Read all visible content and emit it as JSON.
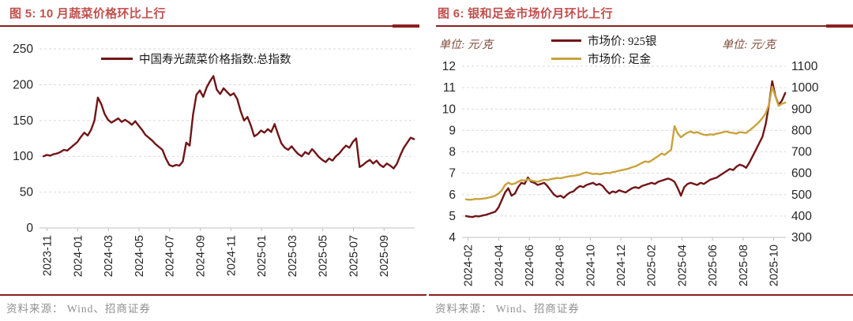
{
  "colors": {
    "title": "#c0504d",
    "rule": "#8b1f1f",
    "dark_line": "#701517",
    "gold_line": "#c9a23c",
    "grid": "#d9d9d9",
    "axis": "#bfbfbf",
    "tick_label": "#262626",
    "unit_text": "#7d4a38",
    "footer_text": "#909090",
    "legend_text": "#1a1a1a"
  },
  "panels": [
    {
      "title": "图 5: 10 月蔬菜价格环比上行",
      "footer": "资料来源： Wind、招商证券"
    },
    {
      "title": "图 6: 银和足金市场价月环比上行",
      "footer": "资料来源： Wind、招商证券",
      "unit_left": "单位: 元/克",
      "unit_right": "单位: 元/克"
    }
  ],
  "chart_data": [
    {
      "type": "line",
      "title": "10 月蔬菜价格环比上行",
      "legend": [
        {
          "label": "中国寿光蔬菜价格指数:总指数",
          "color": "#701517"
        }
      ],
      "y_axis": {
        "min": 0,
        "max": 250,
        "step": 50
      },
      "x_ticks": {
        "labels": [
          "2023-11",
          "2024-01",
          "2024-03",
          "2024-05",
          "2024-07",
          "2024-09",
          "2024-11",
          "2025-01",
          "2025-03",
          "2025-05",
          "2025-07",
          "2025-09"
        ],
        "months": [
          0,
          2,
          4,
          6,
          8,
          10,
          12,
          14,
          16,
          18,
          20,
          22
        ]
      },
      "total_months": 24.5,
      "data_months": 24.2,
      "tick_offset": 0.5,
      "grid": true,
      "legend_position": "top-center",
      "series": [
        {
          "name": "中国寿光蔬菜价格指数:总指数",
          "axis": "left",
          "color": "#701517",
          "values": [
            100,
            102,
            101,
            103,
            104,
            106,
            109,
            108,
            112,
            116,
            120,
            127,
            133,
            129,
            137,
            150,
            182,
            173,
            159,
            151,
            147,
            150,
            153,
            148,
            151,
            148,
            144,
            149,
            143,
            137,
            130,
            126,
            122,
            117,
            113,
            109,
            97,
            88,
            86,
            88,
            87,
            93,
            119,
            115,
            158,
            186,
            192,
            183,
            196,
            205,
            212,
            193,
            187,
            195,
            190,
            185,
            188,
            180,
            163,
            150,
            155,
            143,
            128,
            131,
            136,
            133,
            138,
            134,
            145,
            131,
            118,
            112,
            109,
            114,
            108,
            103,
            100,
            106,
            103,
            110,
            105,
            99,
            95,
            92,
            97,
            94,
            100,
            104,
            110,
            115,
            112,
            120,
            125,
            85,
            88,
            92,
            95,
            90,
            94,
            88,
            85,
            90,
            87,
            83,
            90,
            102,
            112,
            119,
            126,
            124
          ]
        }
      ]
    },
    {
      "type": "line",
      "title": "银和足金市场价月环比上行",
      "legend": [
        {
          "label": "市场价: 925银",
          "color": "#701517"
        },
        {
          "label": "市场价: 足金",
          "color": "#c9a23c"
        }
      ],
      "y_axis": {
        "min": 4,
        "max": 12,
        "step": 1
      },
      "y_axis_right": {
        "min": 300,
        "max": 1100,
        "step": 100
      },
      "x_ticks": {
        "labels": [
          "2024-02",
          "2024-04",
          "2024-06",
          "2024-08",
          "2024-10",
          "2024-12",
          "2025-02",
          "2025-04",
          "2025-06",
          "2025-08",
          "2025-10"
        ],
        "months": [
          0,
          2,
          4,
          6,
          8,
          10,
          12,
          14,
          16,
          18,
          20
        ]
      },
      "total_months": 21.2,
      "data_months": 20.9,
      "tick_offset": 0.4,
      "grid": true,
      "legend_position": "top-center",
      "series": [
        {
          "name": "市场价: 925银",
          "axis": "left",
          "color": "#701517",
          "values": [
            5.0,
            4.97,
            4.95,
            5.0,
            4.98,
            5.02,
            5.05,
            5.1,
            5.15,
            5.2,
            5.4,
            5.75,
            6.1,
            6.3,
            5.95,
            6.05,
            6.35,
            6.55,
            6.5,
            6.8,
            6.6,
            6.55,
            6.45,
            6.5,
            6.55,
            6.4,
            6.2,
            6.0,
            5.9,
            5.95,
            5.85,
            6.0,
            6.1,
            6.15,
            6.3,
            6.4,
            6.35,
            6.45,
            6.5,
            6.55,
            6.45,
            6.5,
            6.4,
            6.2,
            6.05,
            6.15,
            6.1,
            6.2,
            6.15,
            6.1,
            6.2,
            6.3,
            6.35,
            6.3,
            6.4,
            6.45,
            6.5,
            6.55,
            6.5,
            6.6,
            6.65,
            6.7,
            6.75,
            6.7,
            6.6,
            6.3,
            5.95,
            6.35,
            6.5,
            6.55,
            6.5,
            6.45,
            6.55,
            6.5,
            6.6,
            6.7,
            6.75,
            6.8,
            6.9,
            7.0,
            7.1,
            7.2,
            7.15,
            7.3,
            7.4,
            7.35,
            7.25,
            7.5,
            7.8,
            8.1,
            8.4,
            8.7,
            9.3,
            10.2,
            11.3,
            10.6,
            10.2,
            10.4,
            10.75
          ]
        },
        {
          "name": "市场价: 足金",
          "axis": "right",
          "color": "#c9a23c",
          "values": [
            478,
            476,
            477,
            480,
            479,
            481,
            483,
            486,
            490,
            495,
            505,
            520,
            545,
            556,
            548,
            552,
            560,
            568,
            565,
            572,
            566,
            563,
            560,
            565,
            570,
            568,
            572,
            575,
            578,
            576,
            580,
            584,
            586,
            588,
            590,
            594,
            600,
            604,
            600,
            596,
            598,
            595,
            598,
            602,
            600,
            605,
            608,
            612,
            615,
            618,
            622,
            628,
            632,
            640,
            648,
            655,
            652,
            660,
            670,
            680,
            692,
            686,
            698,
            710,
            820,
            786,
            768,
            780,
            790,
            795,
            788,
            792,
            785,
            780,
            778,
            782,
            780,
            785,
            788,
            792,
            795,
            790,
            788,
            785,
            792,
            790,
            788,
            800,
            812,
            825,
            840,
            858,
            880,
            920,
            1005,
            958,
            915,
            925,
            930
          ]
        }
      ]
    }
  ]
}
